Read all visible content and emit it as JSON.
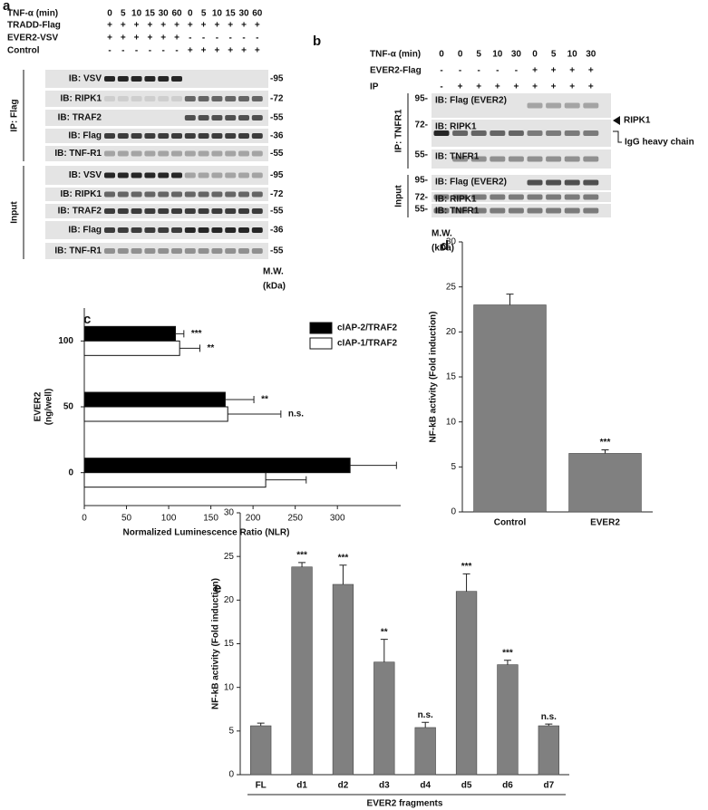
{
  "blot_a": {
    "label": "a",
    "treatment_rows": [
      {
        "name": "TNF-α (min)",
        "lanes": [
          "0",
          "5",
          "10",
          "15",
          "30",
          "60",
          "0",
          "5",
          "10",
          "15",
          "30",
          "60"
        ]
      },
      {
        "name": "TRADD-Flag",
        "lanes": [
          "+",
          "+",
          "+",
          "+",
          "+",
          "+",
          "+",
          "+",
          "+",
          "+",
          "+",
          "+"
        ]
      },
      {
        "name": "EVER2-VSV",
        "lanes": [
          "+",
          "+",
          "+",
          "+",
          "+",
          "+",
          "-",
          "-",
          "-",
          "-",
          "-",
          "-"
        ]
      },
      {
        "name": "Control",
        "lanes": [
          "-",
          "-",
          "-",
          "-",
          "-",
          "-",
          "+",
          "+",
          "+",
          "+",
          "+",
          "+"
        ]
      }
    ],
    "sections": [
      {
        "name": "IP: Flag",
        "blots": [
          {
            "label": "IB: VSV",
            "mw": "-95"
          },
          {
            "label": "IB: RIPK1",
            "mw": "-72"
          },
          {
            "label": "IB: TRAF2",
            "mw": "-55"
          },
          {
            "label": "IB: Flag",
            "mw": "-36"
          },
          {
            "label": "IB: TNF-R1",
            "mw": "-55"
          }
        ]
      },
      {
        "name": "Input",
        "blots": [
          {
            "label": "IB: VSV",
            "mw": "-95"
          },
          {
            "label": "IB: RIPK1",
            "mw": "-72"
          },
          {
            "label": "IB: TRAF2",
            "mw": "-55"
          },
          {
            "label": "IB: Flag",
            "mw": "-36"
          },
          {
            "label": "IB: TNF-R1",
            "mw": "-55"
          }
        ]
      }
    ],
    "mw_title": "M.W.",
    "mw_unit": "(kDa)"
  },
  "blot_b": {
    "label": "b",
    "treatment_rows": [
      {
        "name": "TNF-α (min)",
        "lanes": [
          "0",
          "0",
          "5",
          "10",
          "30",
          "0",
          "5",
          "10",
          "30"
        ]
      },
      {
        "name": "EVER2-Flag",
        "lanes": [
          "-",
          "-",
          "-",
          "-",
          "-",
          "+",
          "+",
          "+",
          "+"
        ]
      },
      {
        "name": "IP",
        "lanes": [
          "-",
          "+",
          "+",
          "+",
          "+",
          "+",
          "+",
          "+",
          "+"
        ]
      }
    ],
    "sections": [
      {
        "name": "IP: TNFR1",
        "blots": [
          {
            "label": "IB: Flag (EVER2)",
            "mw": "95-"
          },
          {
            "label": "IB: RIPK1",
            "mw": "72-"
          },
          {
            "label": "IB: TNFR1",
            "mw": "55-"
          }
        ]
      },
      {
        "name": "Input",
        "blots": [
          {
            "label": "IB: Flag (EVER2)",
            "mw": "95-"
          },
          {
            "label": "IB: RIPK1",
            "mw": "72-"
          },
          {
            "label": "IB: TNFR1",
            "mw": "55-"
          }
        ]
      }
    ],
    "annotations": [
      "RIPK1",
      "IgG heavy chain"
    ],
    "mw_title": "M.W.",
    "mw_unit": "(kDa)"
  },
  "chart_data": [
    {
      "type": "hbar",
      "panel_label": "c",
      "categories": [
        "100",
        "50",
        "0"
      ],
      "series": [
        {
          "name": "cIAP-2/TRAF2",
          "color": "#000000",
          "values": [
            108,
            167,
            315
          ],
          "errors": [
            10,
            34,
            55
          ],
          "annotations": [
            "***",
            "**",
            null
          ]
        },
        {
          "name": "cIAP-1/TRAF2",
          "color": "#ffffff",
          "values": [
            113,
            170,
            215
          ],
          "errors": [
            24,
            63,
            48
          ],
          "annotations": [
            "**",
            "n.s.",
            null
          ]
        }
      ],
      "xlim": [
        0,
        375
      ],
      "xticks": [
        0,
        50,
        100,
        150,
        200,
        250,
        300
      ],
      "xlabel": "Normalized Luminescence Ratio (NLR)",
      "ylabel": [
        "EVER2",
        "(ng/well)"
      ],
      "legend": "upper right"
    },
    {
      "type": "bar",
      "panel_label": "d",
      "categories": [
        "Control",
        "EVER2"
      ],
      "values": [
        23,
        6.5
      ],
      "errors": [
        1.2,
        0.4
      ],
      "annotations": [
        null,
        "***"
      ],
      "color": "#808080",
      "ylim": [
        0,
        30
      ],
      "yticks": [
        0,
        5,
        10,
        15,
        20,
        25,
        30
      ],
      "ylabel": "NF-kB activity (Fold induction)"
    },
    {
      "type": "bar",
      "panel_label": "e",
      "categories": [
        "FL",
        "d1",
        "d2",
        "d3",
        "d4",
        "d5",
        "d6",
        "d7"
      ],
      "values": [
        5.6,
        23.8,
        21.8,
        12.9,
        5.4,
        21.0,
        12.6,
        5.6
      ],
      "errors": [
        0.3,
        0.5,
        2.2,
        2.6,
        0.6,
        2.0,
        0.5,
        0.2
      ],
      "annotations": [
        null,
        "***",
        "***",
        "**",
        "n.s.",
        "***",
        "***",
        "n.s."
      ],
      "color": "#808080",
      "ylim": [
        0,
        30
      ],
      "yticks": [
        0,
        5,
        10,
        15,
        20,
        25,
        30
      ],
      "ylabel": "NF-kB activity (Fold induction)",
      "xlabel": "EVER2 fragments"
    }
  ]
}
